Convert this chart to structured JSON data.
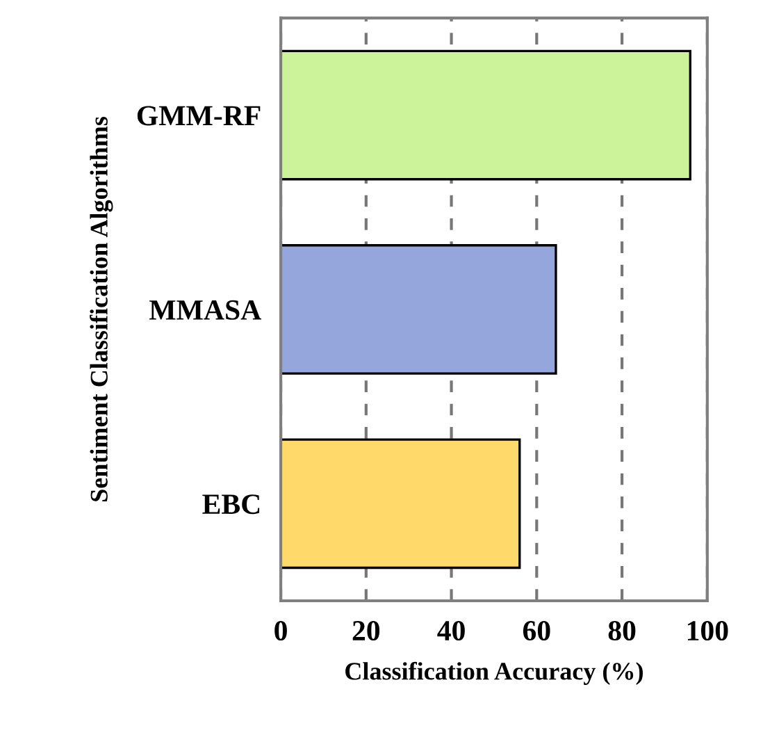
{
  "chart_data": {
    "type": "bar",
    "orientation": "horizontal",
    "categories": [
      "GMM-RF",
      "MMASA",
      "EBC"
    ],
    "values": [
      96,
      64.5,
      56
    ],
    "colors": [
      "#ccf29a",
      "#95a6dd",
      "#ffda6a"
    ],
    "xlabel": "Classification Accuracy (%)",
    "ylabel": "Sentiment Classification Algorithms",
    "xlim": [
      0,
      100
    ],
    "xticks": [
      0,
      20,
      40,
      60,
      80,
      100
    ],
    "grid": "x",
    "line_style": "dashed"
  }
}
